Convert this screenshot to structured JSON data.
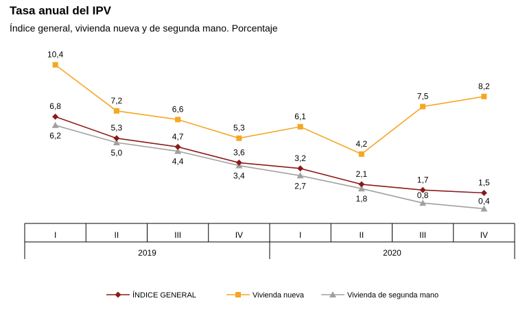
{
  "chart_data": {
    "type": "line",
    "title": "Tasa anual del IPV",
    "subtitle": "Índice general, vivienda nueva y de segunda mano. Porcentaje",
    "categories": [
      "I",
      "II",
      "III",
      "IV",
      "I",
      "II",
      "III",
      "IV"
    ],
    "years": [
      {
        "label": "2019",
        "span": [
          0,
          3
        ]
      },
      {
        "label": "2020",
        "span": [
          4,
          7
        ]
      }
    ],
    "series": [
      {
        "name": "ÍNDICE GENERAL",
        "color": "#8b1a1a",
        "marker": "diamond",
        "values": [
          6.8,
          5.3,
          4.7,
          3.6,
          3.2,
          2.1,
          1.7,
          1.5
        ],
        "labels": [
          "6,8",
          "5,3",
          "4,7",
          "3,6",
          "3,2",
          "2,1",
          "1,7",
          "1,5"
        ]
      },
      {
        "name": "Vivienda nueva",
        "color": "#f5a623",
        "marker": "square",
        "values": [
          10.4,
          7.2,
          6.6,
          5.3,
          6.1,
          4.2,
          7.5,
          8.2
        ],
        "labels": [
          "10,4",
          "7,2",
          "6,6",
          "5,3",
          "6,1",
          "4,2",
          "7,5",
          "8,2"
        ]
      },
      {
        "name": "Vivienda de segunda mano",
        "color": "#a0a0a0",
        "marker": "triangle",
        "values": [
          6.2,
          5.0,
          4.4,
          3.4,
          2.7,
          1.8,
          0.8,
          0.4
        ],
        "labels": [
          "6,2",
          "5,0",
          "4,4",
          "3,4",
          "2,7",
          "1,8",
          "0,8",
          "0,4"
        ]
      }
    ],
    "ylim": [
      0,
      11.5
    ],
    "grid": false,
    "legend_position": "bottom"
  }
}
